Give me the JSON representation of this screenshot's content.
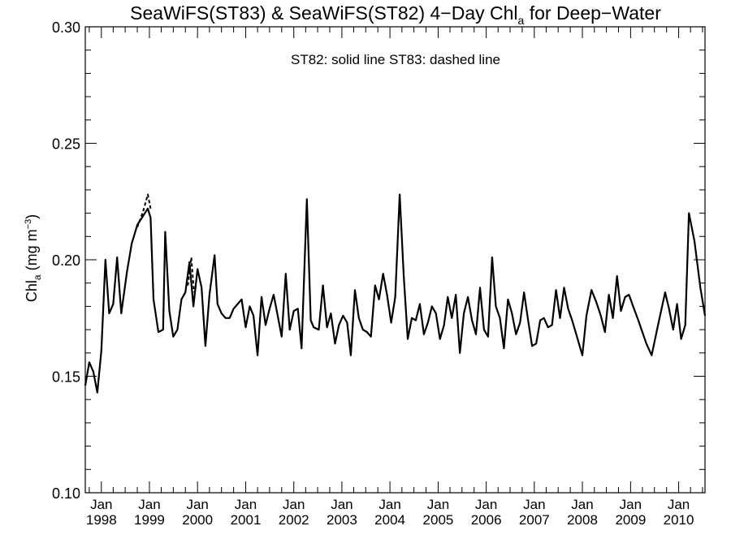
{
  "chart_data": {
    "type": "line",
    "title": "SeaWiFS(ST83) & SeaWiFS(ST82) 4−Day Chl",
    "title_sub": "a",
    "title_tail": " for Deep−Water",
    "ylabel": "Chl",
    "ylabel_sub": "a",
    "ylabel_unit": " (mg m",
    "ylabel_unit_sup": "−3",
    "ylabel_close": ")",
    "annotation": "ST82: solid line   ST83: dashed line",
    "xlim": [
      "1997-09-01",
      "2010-07-20"
    ],
    "ylim": [
      0.1,
      0.3
    ],
    "yticks": [
      {
        "value": 0.1,
        "label": "0.10"
      },
      {
        "value": 0.15,
        "label": "0.15"
      },
      {
        "value": 0.2,
        "label": "0.20"
      },
      {
        "value": 0.25,
        "label": "0.25"
      },
      {
        "value": 0.3,
        "label": "0.30"
      }
    ],
    "xticks": [
      {
        "date": "1998-01-01",
        "top": "Jan",
        "bottom": "1998"
      },
      {
        "date": "1999-01-01",
        "top": "Jan",
        "bottom": "1999"
      },
      {
        "date": "2000-01-01",
        "top": "Jan",
        "bottom": "2000"
      },
      {
        "date": "2001-01-01",
        "top": "Jan",
        "bottom": "2001"
      },
      {
        "date": "2002-01-01",
        "top": "Jan",
        "bottom": "2002"
      },
      {
        "date": "2003-01-01",
        "top": "Jan",
        "bottom": "2003"
      },
      {
        "date": "2004-01-01",
        "top": "Jan",
        "bottom": "2004"
      },
      {
        "date": "2005-01-01",
        "top": "Jan",
        "bottom": "2005"
      },
      {
        "date": "2006-01-01",
        "top": "Jan",
        "bottom": "2006"
      },
      {
        "date": "2007-01-01",
        "top": "Jan",
        "bottom": "2007"
      },
      {
        "date": "2008-01-01",
        "top": "Jan",
        "bottom": "2008"
      },
      {
        "date": "2009-01-01",
        "top": "Jan",
        "bottom": "2009"
      },
      {
        "date": "2010-01-01",
        "top": "Jan",
        "bottom": "2010"
      }
    ],
    "series": [
      {
        "name": "ST82",
        "style": "solid",
        "color": "#000000",
        "points": [
          [
            "1997-09-01",
            0.146
          ],
          [
            "1997-10-01",
            0.156
          ],
          [
            "1997-11-01",
            0.152
          ],
          [
            "1997-12-01",
            0.143
          ],
          [
            "1998-01-01",
            0.161
          ],
          [
            "1998-02-01",
            0.2
          ],
          [
            "1998-03-01",
            0.177
          ],
          [
            "1998-04-01",
            0.181
          ],
          [
            "1998-05-01",
            0.201
          ],
          [
            "1998-06-01",
            0.177
          ],
          [
            "1998-07-15",
            0.195
          ],
          [
            "1998-08-20",
            0.207
          ],
          [
            "1998-10-01",
            0.215
          ],
          [
            "1998-12-20",
            0.222
          ],
          [
            "1999-01-10",
            0.218
          ],
          [
            "1999-02-01",
            0.183
          ],
          [
            "1999-03-10",
            0.169
          ],
          [
            "1999-04-15",
            0.17
          ],
          [
            "1999-05-01",
            0.212
          ],
          [
            "1999-06-01",
            0.178
          ],
          [
            "1999-07-01",
            0.167
          ],
          [
            "1999-08-01",
            0.17
          ],
          [
            "1999-09-01",
            0.183
          ],
          [
            "1999-10-01",
            0.186
          ],
          [
            "1999-11-01",
            0.199
          ],
          [
            "1999-12-01",
            0.18
          ],
          [
            "2000-01-01",
            0.196
          ],
          [
            "2000-02-01",
            0.188
          ],
          [
            "2000-03-01",
            0.163
          ],
          [
            "2000-04-01",
            0.185
          ],
          [
            "2000-05-10",
            0.202
          ],
          [
            "2000-06-01",
            0.181
          ],
          [
            "2000-07-01",
            0.177
          ],
          [
            "2000-08-01",
            0.175
          ],
          [
            "2000-09-01",
            0.175
          ],
          [
            "2000-10-01",
            0.179
          ],
          [
            "2000-11-01",
            0.181
          ],
          [
            "2000-12-01",
            0.183
          ],
          [
            "2001-01-01",
            0.171
          ],
          [
            "2001-02-01",
            0.18
          ],
          [
            "2001-03-01",
            0.176
          ],
          [
            "2001-04-01",
            0.159
          ],
          [
            "2001-05-01",
            0.184
          ],
          [
            "2001-06-01",
            0.172
          ],
          [
            "2001-07-01",
            0.179
          ],
          [
            "2001-08-01",
            0.185
          ],
          [
            "2001-09-01",
            0.176
          ],
          [
            "2001-10-01",
            0.167
          ],
          [
            "2001-11-01",
            0.194
          ],
          [
            "2001-12-01",
            0.17
          ],
          [
            "2002-01-01",
            0.178
          ],
          [
            "2002-02-01",
            0.179
          ],
          [
            "2002-03-01",
            0.162
          ],
          [
            "2002-04-10",
            0.226
          ],
          [
            "2002-05-10",
            0.174
          ],
          [
            "2002-06-01",
            0.171
          ],
          [
            "2002-07-10",
            0.17
          ],
          [
            "2002-08-10",
            0.189
          ],
          [
            "2002-09-10",
            0.171
          ],
          [
            "2002-10-10",
            0.177
          ],
          [
            "2002-11-10",
            0.164
          ],
          [
            "2002-12-10",
            0.172
          ],
          [
            "2003-01-10",
            0.176
          ],
          [
            "2003-02-10",
            0.173
          ],
          [
            "2003-03-10",
            0.159
          ],
          [
            "2003-04-10",
            0.187
          ],
          [
            "2003-05-10",
            0.175
          ],
          [
            "2003-06-10",
            0.17
          ],
          [
            "2003-07-10",
            0.169
          ],
          [
            "2003-08-10",
            0.167
          ],
          [
            "2003-09-10",
            0.189
          ],
          [
            "2003-10-10",
            0.183
          ],
          [
            "2003-11-10",
            0.194
          ],
          [
            "2003-12-10",
            0.185
          ],
          [
            "2004-01-10",
            0.173
          ],
          [
            "2004-02-10",
            0.184
          ],
          [
            "2004-03-15",
            0.228
          ],
          [
            "2004-04-15",
            0.193
          ],
          [
            "2004-05-15",
            0.166
          ],
          [
            "2004-06-15",
            0.175
          ],
          [
            "2004-07-15",
            0.174
          ],
          [
            "2004-08-15",
            0.181
          ],
          [
            "2004-09-15",
            0.168
          ],
          [
            "2004-10-15",
            0.173
          ],
          [
            "2004-11-15",
            0.18
          ],
          [
            "2004-12-15",
            0.177
          ],
          [
            "2005-01-15",
            0.166
          ],
          [
            "2005-02-15",
            0.172
          ],
          [
            "2005-03-15",
            0.184
          ],
          [
            "2005-04-15",
            0.175
          ],
          [
            "2005-05-15",
            0.185
          ],
          [
            "2005-06-15",
            0.16
          ],
          [
            "2005-07-15",
            0.177
          ],
          [
            "2005-08-15",
            0.184
          ],
          [
            "2005-09-15",
            0.174
          ],
          [
            "2005-10-15",
            0.168
          ],
          [
            "2005-11-15",
            0.188
          ],
          [
            "2005-12-15",
            0.17
          ],
          [
            "2006-01-15",
            0.167
          ],
          [
            "2006-02-15",
            0.201
          ],
          [
            "2006-03-15",
            0.18
          ],
          [
            "2006-04-15",
            0.175
          ],
          [
            "2006-05-15",
            0.162
          ],
          [
            "2006-06-15",
            0.183
          ],
          [
            "2006-07-15",
            0.177
          ],
          [
            "2006-08-15",
            0.168
          ],
          [
            "2006-09-15",
            0.173
          ],
          [
            "2006-10-15",
            0.186
          ],
          [
            "2006-11-15",
            0.174
          ],
          [
            "2006-12-15",
            0.163
          ],
          [
            "2007-01-15",
            0.164
          ],
          [
            "2007-02-15",
            0.174
          ],
          [
            "2007-03-15",
            0.175
          ],
          [
            "2007-04-15",
            0.171
          ],
          [
            "2007-05-15",
            0.172
          ],
          [
            "2007-06-15",
            0.187
          ],
          [
            "2007-07-15",
            0.175
          ],
          [
            "2007-08-15",
            0.188
          ],
          [
            "2007-09-15",
            0.179
          ],
          [
            "2007-10-15",
            0.174
          ],
          [
            "2007-12-01",
            0.165
          ],
          [
            "2008-01-01",
            0.159
          ],
          [
            "2008-02-01",
            0.176
          ],
          [
            "2008-03-10",
            0.187
          ],
          [
            "2008-04-15",
            0.182
          ],
          [
            "2008-05-20",
            0.176
          ],
          [
            "2008-06-20",
            0.169
          ],
          [
            "2008-07-20",
            0.185
          ],
          [
            "2008-08-20",
            0.175
          ],
          [
            "2008-09-20",
            0.193
          ],
          [
            "2008-10-20",
            0.178
          ],
          [
            "2008-11-20",
            0.184
          ],
          [
            "2008-12-20",
            0.185
          ],
          [
            "2009-01-20",
            0.18
          ],
          [
            "2009-03-01",
            0.174
          ],
          [
            "2009-05-01",
            0.164
          ],
          [
            "2009-06-10",
            0.159
          ],
          [
            "2009-08-01",
            0.173
          ],
          [
            "2009-09-20",
            0.186
          ],
          [
            "2009-10-20",
            0.179
          ],
          [
            "2009-11-20",
            0.17
          ],
          [
            "2009-12-20",
            0.181
          ],
          [
            "2010-01-20",
            0.166
          ],
          [
            "2010-02-20",
            0.172
          ],
          [
            "2010-03-20",
            0.22
          ],
          [
            "2010-05-01",
            0.208
          ],
          [
            "2010-06-15",
            0.188
          ],
          [
            "2010-07-20",
            0.176
          ]
        ]
      },
      {
        "name": "ST83",
        "style": "dashed",
        "color": "#000000",
        "points": [
          [
            "1998-10-01",
            0.214
          ],
          [
            "1998-11-15",
            0.221
          ],
          [
            "1998-12-20",
            0.228
          ],
          [
            "1999-01-10",
            0.222
          ]
        ]
      },
      {
        "name": "ST83",
        "style": "dashed",
        "color": "#000000",
        "points": [
          [
            "1999-10-20",
            0.189
          ],
          [
            "1999-11-15",
            0.201
          ],
          [
            "1999-12-05",
            0.186
          ]
        ]
      }
    ]
  }
}
